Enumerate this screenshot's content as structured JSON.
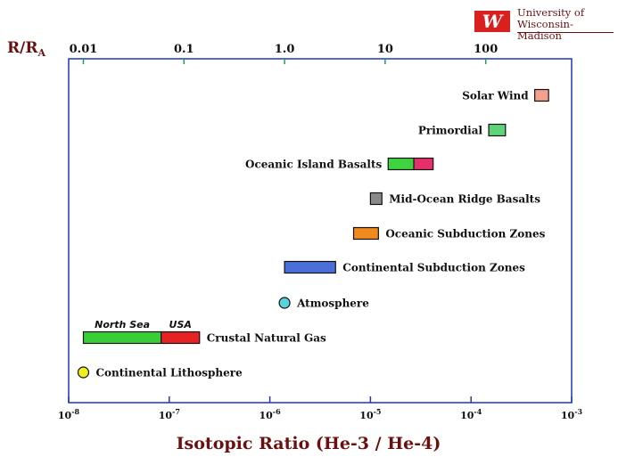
{
  "logo": {
    "mark": "W",
    "line1": "University of",
    "line2": "Wisconsin-Madison"
  },
  "colors": {
    "frame": "#1f36b8",
    "title": "#6b1010",
    "label": "#111111",
    "green_tick": "#19a64a",
    "solar_wind": "#f3a08f",
    "primordial": "#5fd37a",
    "oib_left": "#3fd341",
    "oib_right": "#e5306c",
    "morb": "#8a8a8a",
    "osz": "#f08a1c",
    "csz": "#4a6fd8",
    "atmosphere": "#59d4dc",
    "north_sea": "#38cf36",
    "usa": "#e62222",
    "lithosphere": "#f2ee1a"
  },
  "chart_data": {
    "type": "range",
    "title": "",
    "xlabel": "Isotopic Ratio (He-3 / He-4)",
    "x_scale": "log",
    "xlim": [
      1e-08,
      0.001
    ],
    "x_ticks": [
      "10-8",
      "10-7",
      "10-6",
      "10-5",
      "10-4",
      "10-3"
    ],
    "top_axis_label_main": "R/R",
    "top_axis_label_sub": "A",
    "top_ticks": [
      "0.01",
      "0.1",
      "1.0",
      "10",
      "100"
    ],
    "rows": [
      {
        "name": "Solar Wind",
        "kind": "bar",
        "label_side": "left",
        "segments": [
          {
            "from": 0.00043,
            "to": 0.00059,
            "color": "solar_wind"
          }
        ]
      },
      {
        "name": "Primordial",
        "kind": "bar",
        "label_side": "left",
        "segments": [
          {
            "from": 0.00015,
            "to": 0.00022,
            "color": "primordial"
          }
        ]
      },
      {
        "name": "Oceanic Island Basalts",
        "kind": "bar",
        "label_side": "left",
        "segments": [
          {
            "from": 1.5e-05,
            "to": 2.7e-05,
            "color": "oib_left"
          },
          {
            "from": 2.7e-05,
            "to": 4.2e-05,
            "color": "oib_right"
          }
        ]
      },
      {
        "name": "Mid-Ocean Ridge Basalts",
        "kind": "bar",
        "label_side": "right",
        "segments": [
          {
            "from": 1e-05,
            "to": 1.3e-05,
            "color": "morb"
          }
        ]
      },
      {
        "name": "Oceanic Subduction Zones",
        "kind": "bar",
        "label_side": "right",
        "segments": [
          {
            "from": 6.8e-06,
            "to": 1.2e-05,
            "color": "osz"
          }
        ]
      },
      {
        "name": "Continental Subduction Zones",
        "kind": "bar",
        "label_side": "right",
        "segments": [
          {
            "from": 1.4e-06,
            "to": 4.5e-06,
            "color": "csz"
          }
        ]
      },
      {
        "name": "Atmosphere",
        "kind": "point",
        "label_side": "right",
        "value": 1.4e-06,
        "color": "atmosphere"
      },
      {
        "name": "Crustal Natural Gas",
        "kind": "bar",
        "label_side": "right",
        "segments": [
          {
            "from": 1.4e-08,
            "to": 8.3e-08,
            "color": "north_sea",
            "label": "North Sea"
          },
          {
            "from": 8.3e-08,
            "to": 2e-07,
            "color": "usa",
            "label": "USA"
          }
        ]
      },
      {
        "name": "Continental Lithosphere",
        "kind": "point",
        "label_side": "right",
        "value": 1.4e-08,
        "color": "lithosphere"
      }
    ]
  }
}
